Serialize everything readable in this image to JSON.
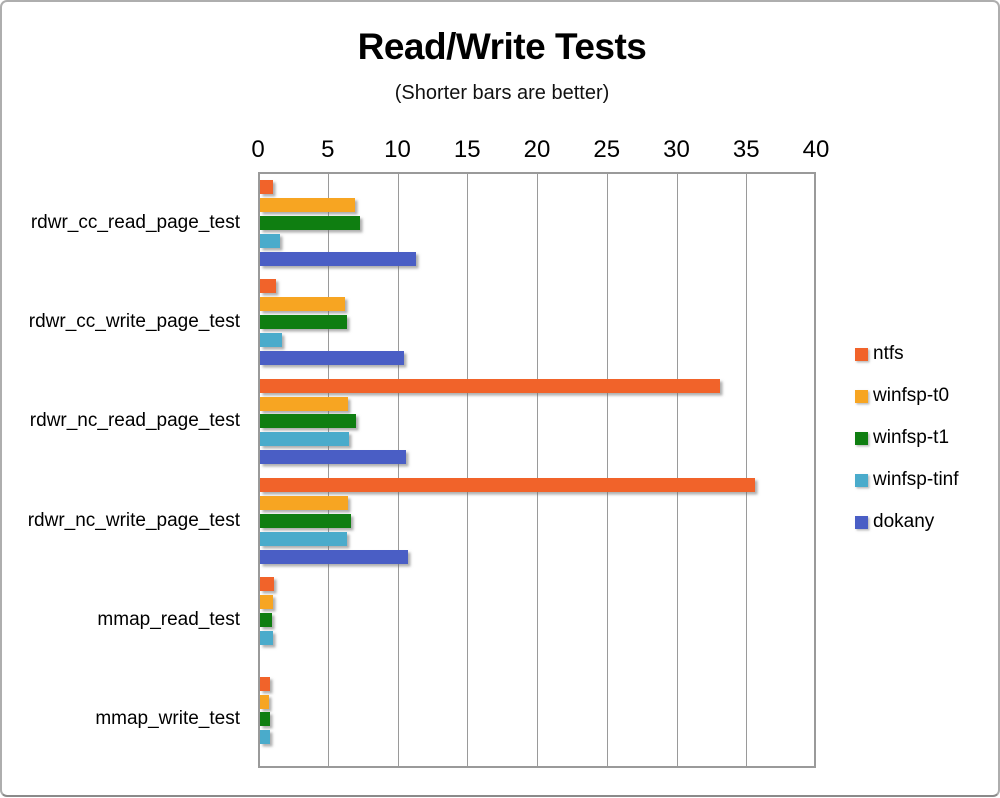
{
  "title": "Read/Write Tests",
  "subtitle": "(Shorter bars are better)",
  "chart_data": {
    "type": "bar",
    "orientation": "horizontal",
    "title": "Read/Write Tests",
    "subtitle": "(Shorter bars are better)",
    "categories": [
      "rdwr_cc_read_page_test",
      "rdwr_cc_write_page_test",
      "rdwr_nc_read_page_test",
      "rdwr_nc_write_page_test",
      "mmap_read_test",
      "mmap_write_test"
    ],
    "series": [
      {
        "name": "ntfs",
        "color": "#f1632a",
        "values": [
          0.9,
          1.15,
          33.0,
          35.5,
          1.0,
          0.7
        ]
      },
      {
        "name": "winfsp-t0",
        "color": "#f7a522",
        "values": [
          6.8,
          6.1,
          6.3,
          6.3,
          0.95,
          0.65
        ]
      },
      {
        "name": "winfsp-t1",
        "color": "#0f7e11",
        "values": [
          7.2,
          6.25,
          6.9,
          6.5,
          0.85,
          0.7
        ]
      },
      {
        "name": "winfsp-tinf",
        "color": "#4aabcb",
        "values": [
          1.45,
          1.6,
          6.4,
          6.25,
          0.95,
          0.7
        ]
      },
      {
        "name": "dokany",
        "color": "#4a5ec5",
        "values": [
          11.2,
          10.3,
          10.5,
          10.6,
          0,
          0
        ]
      }
    ],
    "xlabel": "",
    "ylabel": "",
    "xlim": [
      0,
      40
    ],
    "xticks": [
      0,
      5,
      10,
      15,
      20,
      25,
      30,
      35,
      40
    ],
    "grid": true,
    "legend_position": "right"
  },
  "colors": {
    "grid": "#9a9a9a",
    "frame_border": "#aeaeae",
    "text": "#000000"
  }
}
